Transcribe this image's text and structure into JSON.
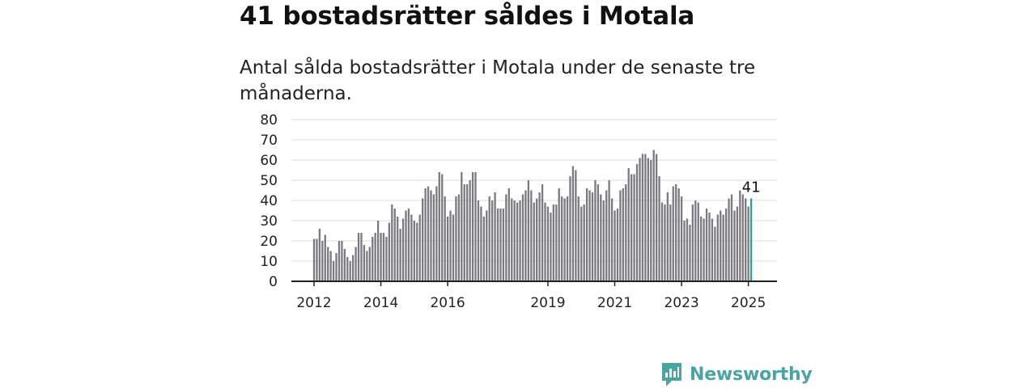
{
  "header": {
    "title": "41 bostadsrätter såldes i Motala",
    "subtitle": "Antal sålda bostadsrätter i Motala under de senaste tre månaderna."
  },
  "brand": {
    "name": "Newsworthy",
    "color": "#49a59f"
  },
  "colors": {
    "bar": "#7a7a80",
    "highlight": "#1fa39a",
    "grid": "#dddddd",
    "axis": "#222222"
  },
  "chart_data": {
    "type": "bar",
    "yticks": [
      0,
      10,
      20,
      30,
      40,
      50,
      60,
      70,
      80
    ],
    "ylim": [
      0,
      80
    ],
    "xticks": [
      "2012",
      "2014",
      "2016",
      "2019",
      "2021",
      "2023",
      "2025"
    ],
    "grid": true,
    "last_label": "41",
    "start": "2012-01",
    "end": "2025-02",
    "values": [
      21,
      21,
      26,
      20,
      23,
      17,
      15,
      10,
      14,
      20,
      20,
      16,
      12,
      10,
      13,
      17,
      24,
      24,
      18,
      15,
      17,
      22,
      24,
      30,
      24,
      24,
      22,
      29,
      38,
      36,
      32,
      26,
      31,
      35,
      36,
      33,
      30,
      29,
      33,
      41,
      46,
      47,
      45,
      43,
      47,
      54,
      53,
      42,
      32,
      35,
      33,
      42,
      43,
      54,
      48,
      48,
      50,
      54,
      54,
      40,
      37,
      32,
      35,
      42,
      40,
      44,
      36,
      36,
      36,
      43,
      46,
      41,
      40,
      39,
      40,
      43,
      45,
      50,
      45,
      39,
      41,
      44,
      48,
      39,
      37,
      34,
      38,
      38,
      46,
      42,
      41,
      42,
      52,
      57,
      55,
      42,
      37,
      38,
      46,
      45,
      44,
      50,
      48,
      43,
      40,
      45,
      50,
      41,
      35,
      36,
      45,
      46,
      48,
      56,
      53,
      53,
      58,
      61,
      63,
      63,
      61,
      60,
      65,
      63,
      52,
      39,
      38,
      44,
      38,
      47,
      48,
      46,
      42,
      30,
      31,
      28,
      38,
      40,
      39,
      32,
      31,
      36,
      34,
      31,
      27,
      33,
      35,
      33,
      36,
      41,
      43,
      35,
      37,
      45,
      43,
      41,
      37,
      41
    ]
  }
}
